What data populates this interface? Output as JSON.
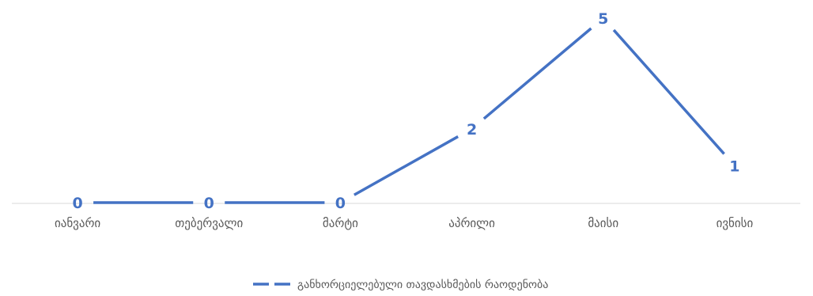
{
  "chart_data": {
    "type": "line",
    "title": "",
    "xlabel": "",
    "ylabel": "",
    "categories": [
      "იანვარი",
      "თებერვალი",
      "მარტი",
      "აპრილი",
      "მაისი",
      "ივნისი"
    ],
    "series": [
      {
        "name": "განხორციელებული თავდასხმების რაოდენობა",
        "values": [
          0,
          0,
          0,
          2,
          5,
          1
        ],
        "color": "#4472c4",
        "show_data_labels": true
      }
    ],
    "ylim": [
      0,
      5
    ],
    "grid": false,
    "legend": "bottom",
    "axis_color": "#d9d9d9"
  }
}
